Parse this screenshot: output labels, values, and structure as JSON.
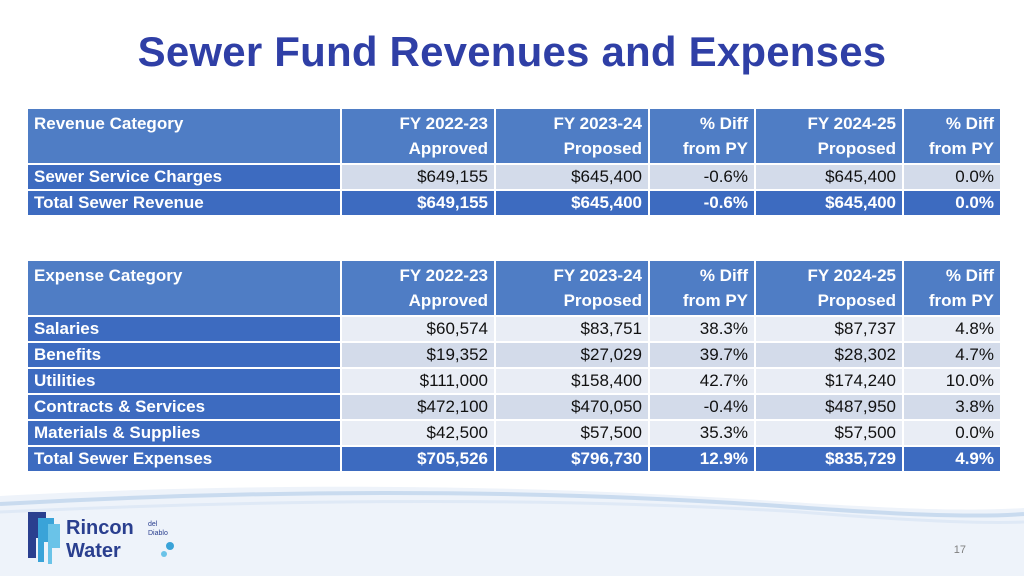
{
  "slide": {
    "title": "Sewer Fund Revenues and Expenses",
    "page_number": "17"
  },
  "logo": {
    "name_line1": "Rincon",
    "name_line2": "Water",
    "small_text_line1": "del",
    "small_text_line2": "Diablo"
  },
  "colors": {
    "title": "#2f3fa6",
    "header_fill": "#4f7dc5",
    "label_fill": "#3d6bc0",
    "row_light": "#e9edf5",
    "row_dark": "#d3dbea"
  },
  "revenue_table": {
    "headers": [
      {
        "line1": "Revenue Category",
        "line2": ""
      },
      {
        "line1": "FY 2022-23",
        "line2": "Approved"
      },
      {
        "line1": "FY 2023-24",
        "line2": "Proposed"
      },
      {
        "line1": "% Diff",
        "line2": "from PY"
      },
      {
        "line1": "FY 2024-25",
        "line2": "Proposed"
      },
      {
        "line1": "% Diff",
        "line2": "from PY"
      }
    ],
    "rows": [
      {
        "cells": [
          "Sewer Service Charges",
          "$649,155",
          "$645,400",
          "-0.6%",
          "$645,400",
          "0.0%"
        ]
      },
      {
        "cells": [
          "Total Sewer Revenue",
          "$649,155",
          "$645,400",
          "-0.6%",
          "$645,400",
          "0.0%"
        ]
      }
    ]
  },
  "expense_table": {
    "headers": [
      {
        "line1": "Expense Category",
        "line2": ""
      },
      {
        "line1": "FY 2022-23",
        "line2": "Approved"
      },
      {
        "line1": "FY 2023-24",
        "line2": "Proposed"
      },
      {
        "line1": "% Diff",
        "line2": "from PY"
      },
      {
        "line1": "FY 2024-25",
        "line2": "Proposed"
      },
      {
        "line1": "% Diff",
        "line2": "from PY"
      }
    ],
    "rows": [
      {
        "cells": [
          "Salaries",
          "$60,574",
          "$83,751",
          "38.3%",
          "$87,737",
          "4.8%"
        ]
      },
      {
        "cells": [
          "Benefits",
          "$19,352",
          "$27,029",
          "39.7%",
          "$28,302",
          "4.7%"
        ]
      },
      {
        "cells": [
          "Utilities",
          "$111,000",
          "$158,400",
          "42.7%",
          "$174,240",
          "10.0%"
        ]
      },
      {
        "cells": [
          "Contracts & Services",
          "$472,100",
          "$470,050",
          "-0.4%",
          "$487,950",
          "3.8%"
        ]
      },
      {
        "cells": [
          "Materials & Supplies",
          "$42,500",
          "$57,500",
          "35.3%",
          "$57,500",
          "0.0%"
        ]
      },
      {
        "cells": [
          "Total Sewer Expenses",
          "$705,526",
          "$796,730",
          "12.9%",
          "$835,729",
          "4.9%"
        ]
      }
    ]
  }
}
